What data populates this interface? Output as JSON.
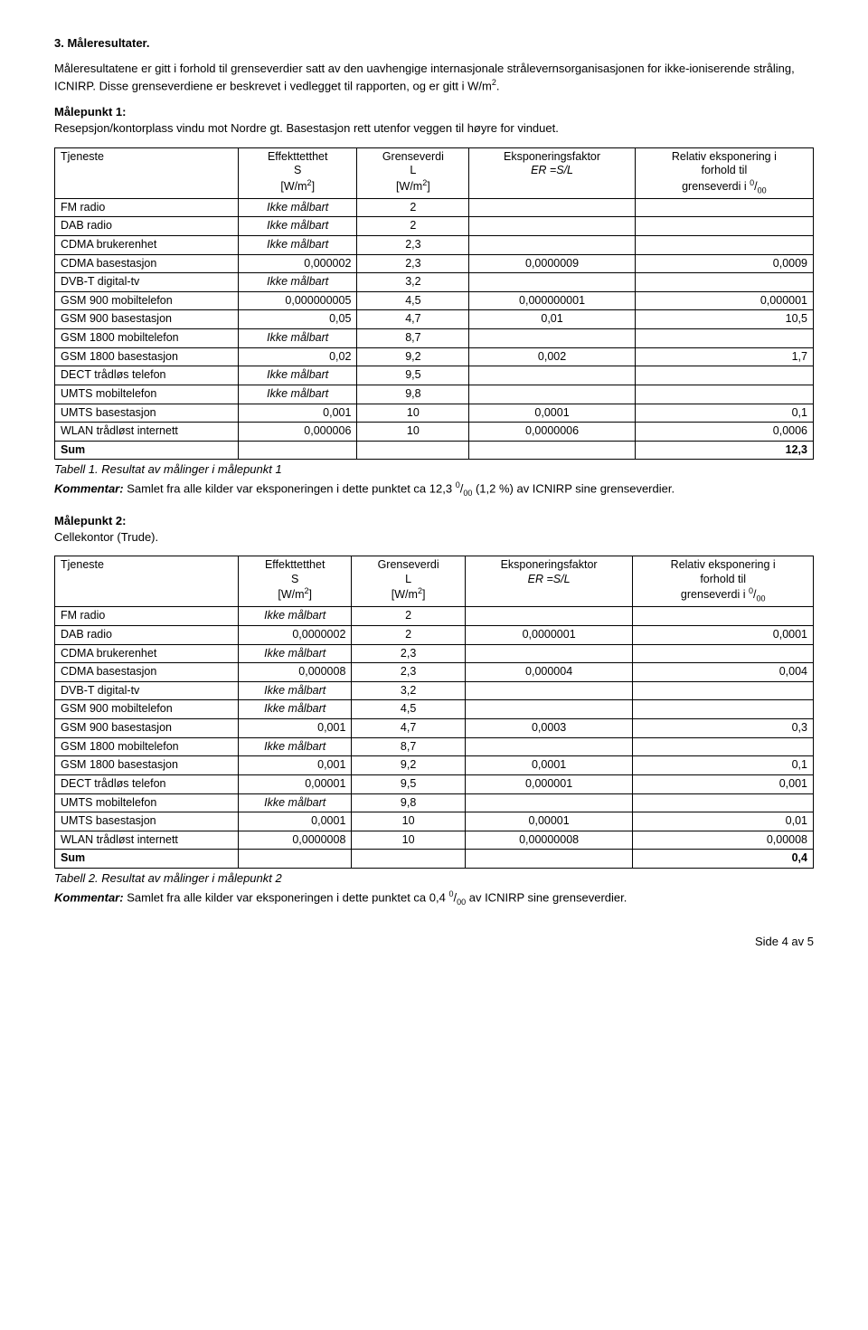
{
  "heading": "3. Måleresultater.",
  "intro_p1": "Måleresultatene er gitt i forhold til grenseverdier satt av den uavhengige internasjonale strålevernsorganisasjonen for ikke-ioniserende stråling, ICNIRP. Disse grenseverdiene er beskrevet i vedlegget til rapporten, og er gitt i W/m",
  "intro_p1_end": ".",
  "mp1_label": "Målepunkt 1:",
  "mp1_desc": "Resepsjon/kontorplass vindu mot Nordre gt. Basestasjon rett utenfor veggen til høyre for vinduet.",
  "th_service": "Tjeneste",
  "th_eff_l1": "Effekttetthet",
  "th_eff_l2": "S",
  "th_eff_l3a": "[W/m",
  "th_eff_l3b": "]",
  "th_gr_l1": "Grenseverdi",
  "th_gr_l2": "L",
  "th_gr_l3a": "[W/m",
  "th_gr_l3b": "]",
  "th_exp_l1": "Eksponeringsfaktor",
  "th_exp_l2a": "ER =S",
  "th_exp_l2b": "/",
  "th_exp_l2c": "L",
  "th_rel_l1": "Relativ eksponering i",
  "th_rel_l2": "forhold til",
  "th_rel_l3a": "grenseverdi i ",
  "th_rel_l3b": "/",
  "th_rel_sup0": "0",
  "th_rel_sub00": "00",
  "ikke": "Ikke målbart",
  "t1": [
    {
      "svc": "FM radio",
      "s": "Ikke målbart",
      "l": "2",
      "er": "",
      "rel": ""
    },
    {
      "svc": "DAB radio",
      "s": "Ikke målbart",
      "l": "2",
      "er": "",
      "rel": ""
    },
    {
      "svc": "CDMA brukerenhet",
      "s": "Ikke målbart",
      "l": "2,3",
      "er": "",
      "rel": ""
    },
    {
      "svc": "CDMA basestasjon",
      "s": "0,000002",
      "l": "2,3",
      "er": "0,0000009",
      "rel": "0,0009"
    },
    {
      "svc": "DVB-T digital-tv",
      "s": "Ikke målbart",
      "l": "3,2",
      "er": "",
      "rel": ""
    },
    {
      "svc": "GSM 900 mobiltelefon",
      "s": "0,000000005",
      "l": "4,5",
      "er": "0,000000001",
      "rel": "0,000001"
    },
    {
      "svc": "GSM 900 basestasjon",
      "s": "0,05",
      "l": "4,7",
      "er": "0,01",
      "rel": "10,5"
    },
    {
      "svc": "GSM 1800 mobiltelefon",
      "s": "Ikke målbart",
      "l": "8,7",
      "er": "",
      "rel": ""
    },
    {
      "svc": "GSM 1800 basestasjon",
      "s": "0,02",
      "l": "9,2",
      "er": "0,002",
      "rel": "1,7"
    },
    {
      "svc": "DECT trådløs telefon",
      "s": "Ikke målbart",
      "l": "9,5",
      "er": "",
      "rel": ""
    },
    {
      "svc": "UMTS mobiltelefon",
      "s": "Ikke målbart",
      "l": "9,8",
      "er": "",
      "rel": ""
    },
    {
      "svc": "UMTS basestasjon",
      "s": "0,001",
      "l": "10",
      "er": "0,0001",
      "rel": "0,1"
    },
    {
      "svc": "WLAN trådløst internett",
      "s": "0,000006",
      "l": "10",
      "er": "0,0000006",
      "rel": "0,0006"
    }
  ],
  "t1_sum_label": "Sum",
  "t1_sum_val": "12,3",
  "t1_caption": "Tabell 1. Resultat av målinger i målepunkt 1",
  "t1_comment_label": "Kommentar:",
  "t1_comment_a": " Samlet fra alle kilder var eksponeringen i dette punktet ca 12,3 ",
  "t1_comment_b": " (1,2 %) av ICNIRP sine grenseverdier.",
  "mp2_label": "Målepunkt 2:",
  "mp2_desc": "Cellekontor (Trude).",
  "t2": [
    {
      "svc": "FM radio",
      "s": "Ikke målbart",
      "l": "2",
      "er": "",
      "rel": ""
    },
    {
      "svc": "DAB radio",
      "s": "0,0000002",
      "l": "2",
      "er": "0,0000001",
      "rel": "0,0001"
    },
    {
      "svc": "CDMA brukerenhet",
      "s": "Ikke målbart",
      "l": "2,3",
      "er": "",
      "rel": ""
    },
    {
      "svc": "CDMA basestasjon",
      "s": "0,000008",
      "l": "2,3",
      "er": "0,000004",
      "rel": "0,004"
    },
    {
      "svc": "DVB-T digital-tv",
      "s": "Ikke målbart",
      "l": "3,2",
      "er": "",
      "rel": ""
    },
    {
      "svc": "GSM 900 mobiltelefon",
      "s": "Ikke målbart",
      "l": "4,5",
      "er": "",
      "rel": ""
    },
    {
      "svc": "GSM 900 basestasjon",
      "s": "0,001",
      "l": "4,7",
      "er": "0,0003",
      "rel": "0,3"
    },
    {
      "svc": "GSM 1800 mobiltelefon",
      "s": "Ikke målbart",
      "l": "8,7",
      "er": "",
      "rel": ""
    },
    {
      "svc": "GSM 1800 basestasjon",
      "s": "0,001",
      "l": "9,2",
      "er": "0,0001",
      "rel": "0,1"
    },
    {
      "svc": "DECT trådløs telefon",
      "s": "0,00001",
      "l": "9,5",
      "er": "0,000001",
      "rel": "0,001"
    },
    {
      "svc": "UMTS mobiltelefon",
      "s": "Ikke målbart",
      "l": "9,8",
      "er": "",
      "rel": ""
    },
    {
      "svc": "UMTS basestasjon",
      "s": "0,0001",
      "l": "10",
      "er": "0,00001",
      "rel": "0,01"
    },
    {
      "svc": "WLAN trådløst internett",
      "s": "0,0000008",
      "l": "10",
      "er": "0,00000008",
      "rel": "0,00008"
    }
  ],
  "t2_sum_label": "Sum",
  "t2_sum_val": "0,4",
  "t2_caption": "Tabell 2. Resultat av målinger i målepunkt 2",
  "t2_comment_label": "Kommentar:",
  "t2_comment_a": " Samlet fra alle kilder var eksponeringen i dette punktet ca 0,4 ",
  "t2_comment_b": " av ICNIRP sine grenseverdier.",
  "footer": "Side 4 av 5"
}
